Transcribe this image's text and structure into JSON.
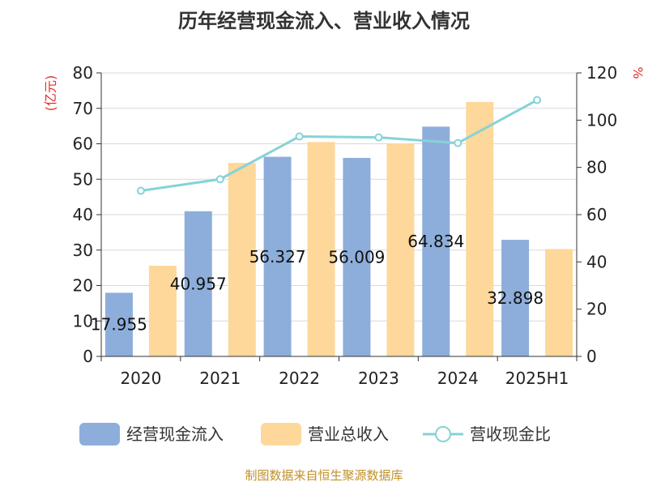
{
  "chart_data": {
    "type": "bar",
    "title": "历年经营现金流入、营业收入情况",
    "categories": [
      "2020",
      "2021",
      "2022",
      "2023",
      "2024",
      "2025H1"
    ],
    "series": [
      {
        "name": "经营现金流入",
        "type": "bar",
        "axis": "left",
        "color": "#8daedb",
        "values": [
          17.955,
          40.957,
          56.327,
          56.009,
          64.834,
          32.898
        ],
        "labels": [
          "17.955",
          "40.957",
          "56.327",
          "56.009",
          "64.834",
          "32.898"
        ]
      },
      {
        "name": "营业总收入",
        "type": "bar",
        "axis": "left",
        "color": "#fdd89a",
        "values": [
          25.6,
          54.6,
          60.5,
          60.0,
          71.8,
          30.3
        ]
      },
      {
        "name": "营收现金比",
        "type": "line",
        "axis": "right",
        "color": "#86d3d6",
        "values": [
          70.1,
          75.0,
          93.1,
          92.7,
          90.3,
          108.5
        ]
      }
    ],
    "y_left": {
      "label": "(亿元)",
      "min": 0,
      "max": 80,
      "ticks": [
        0,
        10,
        20,
        30,
        40,
        50,
        60,
        70,
        80
      ]
    },
    "y_right": {
      "label": "%",
      "min": 0,
      "max": 120,
      "ticks": [
        0,
        20,
        40,
        60,
        80,
        100,
        120
      ]
    },
    "grid": true,
    "legend_position": "bottom"
  },
  "source": "制图数据来自恒生聚源数据库"
}
